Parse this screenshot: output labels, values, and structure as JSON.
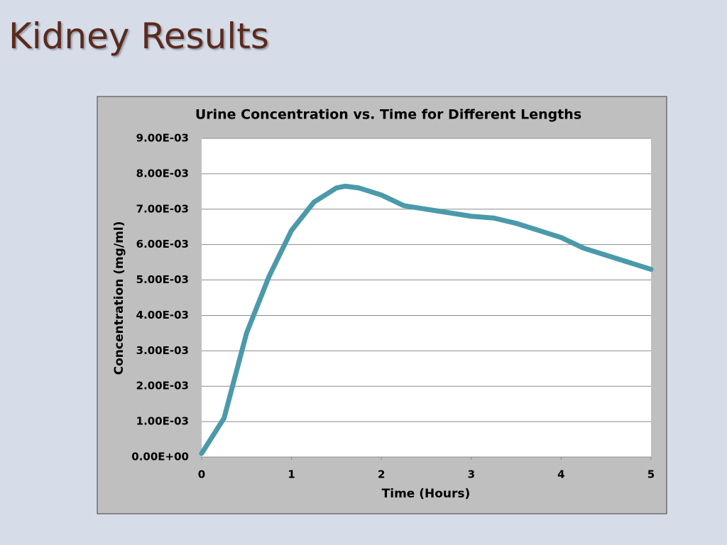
{
  "slide_title": "Kidney Results",
  "chart_data": {
    "type": "line",
    "title": "Urine Concentration vs. Time for Different Lengths",
    "x_label": "Time (Hours)",
    "y_label": "Concentration (mg/ml)",
    "x": [
      0,
      0.25,
      0.5,
      0.75,
      1,
      1.25,
      1.5,
      1.6,
      1.75,
      2,
      2.25,
      2.5,
      2.75,
      3,
      3.25,
      3.5,
      3.75,
      4,
      4.25,
      4.5,
      4.75,
      5
    ],
    "values": [
      0.0001,
      0.0011,
      0.0035,
      0.0051,
      0.0064,
      0.0072,
      0.0076,
      0.00765,
      0.0076,
      0.0074,
      0.0071,
      0.007,
      0.0069,
      0.0068,
      0.00675,
      0.0066,
      0.0064,
      0.0062,
      0.0059,
      0.0057,
      0.0055,
      0.0053
    ],
    "color": "#4a9aaa",
    "xlim": [
      0,
      5
    ],
    "xticks": [
      0,
      1,
      2,
      3,
      4,
      5
    ],
    "ylim": [
      0,
      0.009
    ],
    "yticks": [
      {
        "value": 0,
        "label": "0.00E+00"
      },
      {
        "value": 0.001,
        "label": "1.00E-03"
      },
      {
        "value": 0.002,
        "label": "2.00E-03"
      },
      {
        "value": 0.003,
        "label": "3.00E-03"
      },
      {
        "value": 0.004,
        "label": "4.00E-03"
      },
      {
        "value": 0.005,
        "label": "5.00E-03"
      },
      {
        "value": 0.006,
        "label": "6.00E-03"
      },
      {
        "value": 0.007,
        "label": "7.00E-03"
      },
      {
        "value": 0.008,
        "label": "8.00E-03"
      },
      {
        "value": 0.009,
        "label": "9.00E-03"
      }
    ],
    "grid": true
  }
}
